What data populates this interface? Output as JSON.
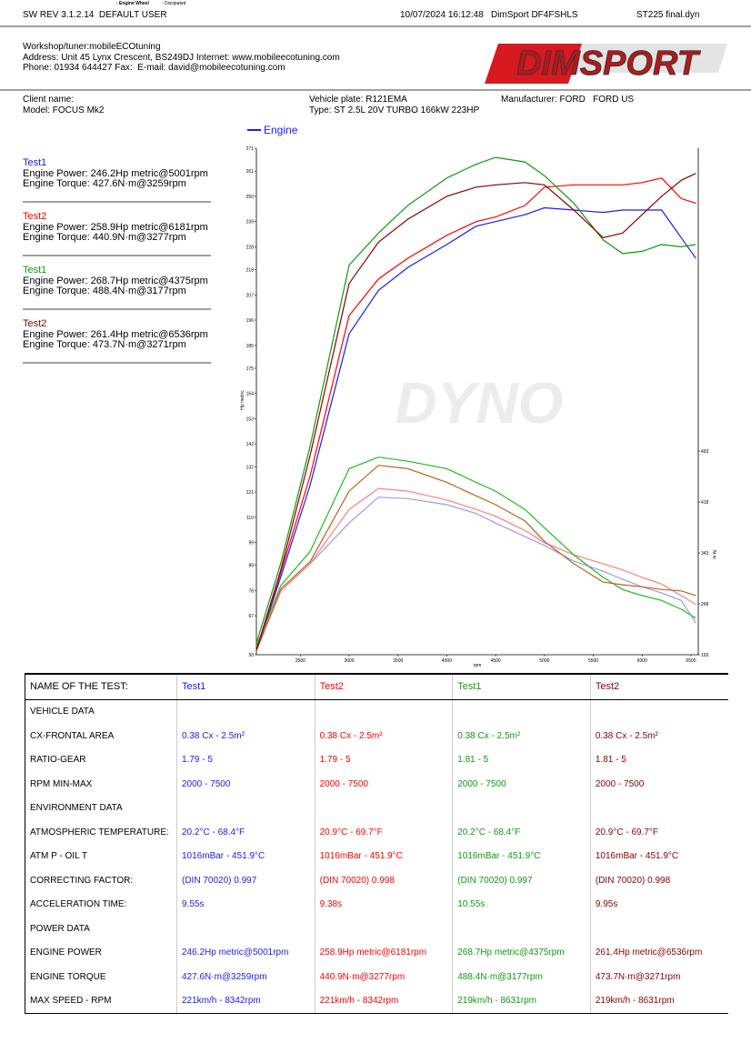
{
  "header": {
    "software": "SW REV 3.1.2.14  DEFAULT USER",
    "note_wheel": "- Engine Wheel",
    "note_dissipated": "- Dissipated",
    "date": "10/07/2024 16:12:48",
    "device": "DimSport DF4FSHLS",
    "file": "ST225 final.dyn"
  },
  "workshop": [
    "Workshop/tuner:mobileECOtuning",
    "Address: Unit 45 Lynx Crescent, BS249DJ Internet: www.mobileecotuning.com",
    "Phone: 01934 644427 Fax:  E-mail: david@mobileecotuning.com"
  ],
  "logo": "DIMSPORT",
  "client": {
    "name": "Client name:",
    "model": "Model: FOCUS Mk2",
    "plate": "Vehicle plate: R121EMA",
    "type": "Type: ST 2.5L 20V TURBO 166kW 223HP",
    "manufacturer": "Manufacturer: FORD   FORD US"
  },
  "results": [
    {
      "name": "Test1",
      "color": "#1a1aff",
      "power": "Engine Power: 246.2Hp metric@5001rpm",
      "torque": "Engine Torque: 427.6N·m@3259rpm"
    },
    {
      "name": "Test2",
      "color": "#ff0000",
      "power": "Engine Power: 258.9Hp metric@6181rpm",
      "torque": "Engine Torque: 440.9N·m@3277rpm"
    },
    {
      "name": "Test1",
      "color": "#119911",
      "power": "Engine Power: 268.7Hp metric@4375rpm",
      "torque": "Engine Torque: 488.4N·m@3177rpm"
    },
    {
      "name": "Test2",
      "color": "#8b0000",
      "power": "Engine Power: 261.4Hp metric@6536rpm",
      "torque": "Engine Torque: 473.7N·m@3271rpm"
    }
  ],
  "chart_data": {
    "type": "line",
    "legend": "Engine",
    "legend_color": "#1a1aff",
    "watermark": "DYNO",
    "ylabel": "Hp metric",
    "y2label": "N·m",
    "xlabel": "rpm",
    "x": [
      2050,
      2300,
      2600,
      3000,
      3300,
      3600,
      4000,
      4300,
      4500,
      4800,
      5000,
      5300,
      5600,
      5800,
      6000,
      6200,
      6400,
      6550
    ],
    "xlim": [
      2050,
      6575
    ],
    "xticks": [
      2500,
      3000,
      3500,
      4000,
      4500,
      5000,
      5500,
      6000,
      6500
    ],
    "ylim": [
      50,
      271
    ],
    "yticks": [
      50,
      67,
      78,
      89,
      99,
      110,
      121,
      132,
      142,
      153,
      164,
      175,
      185,
      196,
      207,
      218,
      228,
      239,
      250,
      261,
      271
    ],
    "y2lim": [
      193,
      939
    ],
    "y2ticks": [
      193,
      268,
      343,
      418,
      493
    ],
    "power_series": [
      {
        "color": "#1a1aff",
        "values": [
          52,
          84,
          124,
          190,
          209,
          219,
          229,
          237,
          239,
          242,
          245,
          244,
          243,
          244,
          244,
          244,
          232,
          223
        ]
      },
      {
        "color": "#ff0000",
        "values": [
          52,
          86,
          128,
          198,
          214,
          223,
          233,
          239,
          241,
          246,
          254,
          255,
          255,
          255,
          256,
          258,
          249,
          247
        ]
      },
      {
        "color": "#119911",
        "values": [
          55,
          90,
          141,
          220,
          234,
          246,
          258,
          264,
          267,
          265,
          259,
          247,
          231,
          225,
          226,
          229,
          228,
          229
        ]
      },
      {
        "color": "#8b0000",
        "values": [
          52,
          87,
          137,
          212,
          230,
          240,
          250,
          254,
          255,
          256,
          255,
          244,
          232,
          234,
          242,
          250,
          257,
          260
        ]
      }
    ],
    "torque_series": [
      {
        "color": "#9a9af0",
        "axis": "y2",
        "values": [
          199,
          287,
          327,
          387,
          425,
          423,
          414,
          401,
          387,
          367,
          354,
          331,
          316,
          304,
          293,
          284,
          273,
          240
        ]
      },
      {
        "color": "#ff7f7f",
        "axis": "y2",
        "values": [
          199,
          287,
          327,
          407,
          438,
          434,
          421,
          407,
          397,
          376,
          358,
          340,
          327,
          318,
          307,
          297,
          280,
          267
        ]
      },
      {
        "color": "#22bb22",
        "axis": "y2",
        "values": [
          205,
          295,
          345,
          467,
          484,
          478,
          467,
          447,
          434,
          407,
          380,
          340,
          307,
          289,
          280,
          273,
          260,
          247
        ]
      },
      {
        "color": "#b8651b",
        "axis": "y2",
        "values": [
          199,
          290,
          330,
          434,
          472,
          467,
          447,
          427,
          414,
          390,
          360,
          327,
          300,
          296,
          293,
          289,
          287,
          280
        ]
      }
    ]
  },
  "table": {
    "column_colors": [
      "#1a1aff",
      "#ff0000",
      "#119911",
      "#8b0000"
    ],
    "header": [
      "NAME OF THE TEST:",
      "Test1",
      "Test2",
      "Test1",
      "Test2"
    ],
    "rows": [
      [
        "VEHICLE DATA"
      ],
      [
        "CX-FRONTAL AREA",
        "0.38 Cx - 2.5m²",
        "0.38 Cx - 2.5m²",
        "0.38 Cx - 2.5m²",
        "0.38 Cx - 2.5m²"
      ],
      [
        "RATIO-GEAR",
        "1.79 - 5",
        "1.79 - 5",
        "1.81 - 5",
        "1.81 - 5"
      ],
      [
        "RPM MIN-MAX",
        "2000 - 7500",
        "2000 - 7500",
        "2000 - 7500",
        "2000 - 7500"
      ],
      [
        "ENVIRONMENT DATA"
      ],
      [
        "ATMOSPHERIC TEMPERATURE:",
        "20.2°C - 68.4°F",
        "20.9°C - 69.7°F",
        "20.2°C - 68.4°F",
        "20.9°C - 69.7°F"
      ],
      [
        "ATM P - OIL T",
        "1016mBar - 451.9°C",
        "1016mBar - 451.9°C",
        "1016mBar - 451.9°C",
        "1016mBar - 451.9°C"
      ],
      [
        "CORRECTING FACTOR:",
        "(DIN 70020) 0.997",
        "(DIN 70020) 0.998",
        "(DIN 70020) 0.997",
        "(DIN 70020) 0.998"
      ],
      [
        "ACCELERATION TIME:",
        "9.55s",
        "9.38s",
        "10.55s",
        "9.95s"
      ],
      [
        "POWER DATA"
      ],
      [
        "ENGINE POWER",
        "246.2Hp metric@5001rpm",
        "258.9Hp metric@6181rpm",
        "268.7Hp metric@4375rpm",
        "261.4Hp metric@6536rpm"
      ],
      [
        "ENGINE TORQUE",
        "427.6N·m@3259rpm",
        "440.9N·m@3277rpm",
        "488.4N·m@3177rpm",
        "473.7N·m@3271rpm"
      ],
      [
        "MAX SPEED - RPM",
        "221km/h - 8342rpm",
        "221km/h - 8342rpm",
        "219km/h - 8631rpm",
        "219km/h - 8631rpm"
      ]
    ]
  }
}
